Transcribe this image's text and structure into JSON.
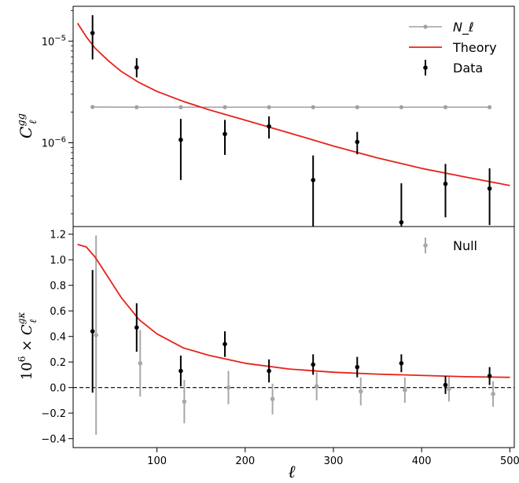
{
  "chart_data": [
    {
      "type": "scatter",
      "xlim": [
        5,
        505
      ],
      "ylim": [
        1.5e-07,
        2.2e-05
      ],
      "yscale": "log",
      "ylabel": "C_ℓ^{gg}",
      "yticks": [
        {
          "value": 1e-06,
          "base": "10",
          "exp": "−6"
        },
        {
          "value": 1e-05,
          "base": "10",
          "exp": "−5"
        }
      ],
      "legend": {
        "placement": "top-right",
        "entries": [
          "N_ℓ",
          "Theory",
          "Data"
        ]
      },
      "series": [
        {
          "name": "N_ℓ",
          "color": "#a0a0a0",
          "x": [
            27,
            77,
            127,
            177,
            227,
            277,
            327,
            377,
            427,
            477
          ],
          "y": [
            2.25e-06,
            2.24e-06,
            2.24e-06,
            2.24e-06,
            2.24e-06,
            2.24e-06,
            2.24e-06,
            2.24e-06,
            2.24e-06,
            2.24e-06
          ]
        },
        {
          "name": "Theory",
          "color": "#e8221b",
          "x": [
            10,
            20,
            30,
            45,
            60,
            80,
            100,
            130,
            160,
            200,
            250,
            300,
            350,
            400,
            450,
            500
          ],
          "y": [
            1.5e-05,
            1.1e-05,
            8.5e-06,
            6.4e-06,
            5e-06,
            3.9e-06,
            3.2e-06,
            2.55e-06,
            2.1e-06,
            1.67e-06,
            1.25e-06,
            9.3e-07,
            7.1e-07,
            5.6e-07,
            4.6e-07,
            3.8e-07
          ]
        },
        {
          "name": "Data",
          "color": "#000000",
          "x": [
            27,
            77,
            127,
            177,
            227,
            277,
            327,
            377,
            427,
            477
          ],
          "y": [
            1.2e-05,
            5.5e-06,
            1.07e-06,
            1.22e-06,
            1.45e-06,
            4.3e-07,
            1.02e-06,
            1.65e-07,
            3.95e-07,
            3.55e-07
          ],
          "err_low": [
            6.6e-06,
            4.4e-06,
            4.3e-07,
            7.6e-07,
            1.1e-06,
            1e-09,
            7.7e-07,
            1e-09,
            1.85e-07,
            1.55e-07
          ],
          "err_high": [
            1.8e-05,
            6.8e-06,
            1.72e-06,
            1.68e-06,
            1.82e-06,
            7.5e-07,
            1.28e-06,
            4e-07,
            6.2e-07,
            5.6e-07
          ]
        }
      ]
    },
    {
      "type": "scatter",
      "xlim": [
        5,
        505
      ],
      "ylim": [
        -0.47,
        1.26
      ],
      "xlabel": "ℓ",
      "ylabel": "10^6 × C_ℓ^{gκ}",
      "xticks": [
        "100",
        "200",
        "300",
        "400",
        "500"
      ],
      "yticks": [
        "−0.4",
        "−0.2",
        "0.0",
        "0.2",
        "0.4",
        "0.6",
        "0.8",
        "1.0",
        "1.2"
      ],
      "legend": {
        "placement": "top-right",
        "entries": [
          "Null"
        ]
      },
      "series": [
        {
          "name": "Theory",
          "color": "#e8221b",
          "x": [
            10,
            20,
            30,
            45,
            60,
            80,
            100,
            130,
            160,
            200,
            250,
            300,
            350,
            400,
            450,
            500
          ],
          "y": [
            1.12,
            1.1,
            1.02,
            0.86,
            0.7,
            0.53,
            0.42,
            0.31,
            0.25,
            0.19,
            0.145,
            0.12,
            0.105,
            0.095,
            0.085,
            0.08
          ]
        },
        {
          "name": "Data",
          "color": "#000000",
          "x": [
            27,
            77,
            127,
            177,
            227,
            277,
            327,
            377,
            427,
            477
          ],
          "y": [
            0.44,
            0.47,
            0.13,
            0.34,
            0.13,
            0.18,
            0.16,
            0.19,
            0.02,
            0.09
          ],
          "err": [
            0.48,
            0.19,
            0.12,
            0.1,
            0.09,
            0.08,
            0.08,
            0.07,
            0.07,
            0.07
          ]
        },
        {
          "name": "Null",
          "color": "#a8a8a8",
          "x": [
            31,
            81,
            131,
            181,
            231,
            281,
            331,
            381,
            431,
            481
          ],
          "y": [
            0.41,
            0.19,
            -0.11,
            0.0,
            -0.09,
            0.01,
            -0.03,
            -0.02,
            -0.01,
            -0.05
          ],
          "err": [
            0.78,
            0.26,
            0.17,
            0.13,
            0.12,
            0.11,
            0.11,
            0.1,
            0.1,
            0.1
          ]
        }
      ],
      "reference_line": {
        "y": 0.0,
        "style": "dashed"
      }
    }
  ]
}
